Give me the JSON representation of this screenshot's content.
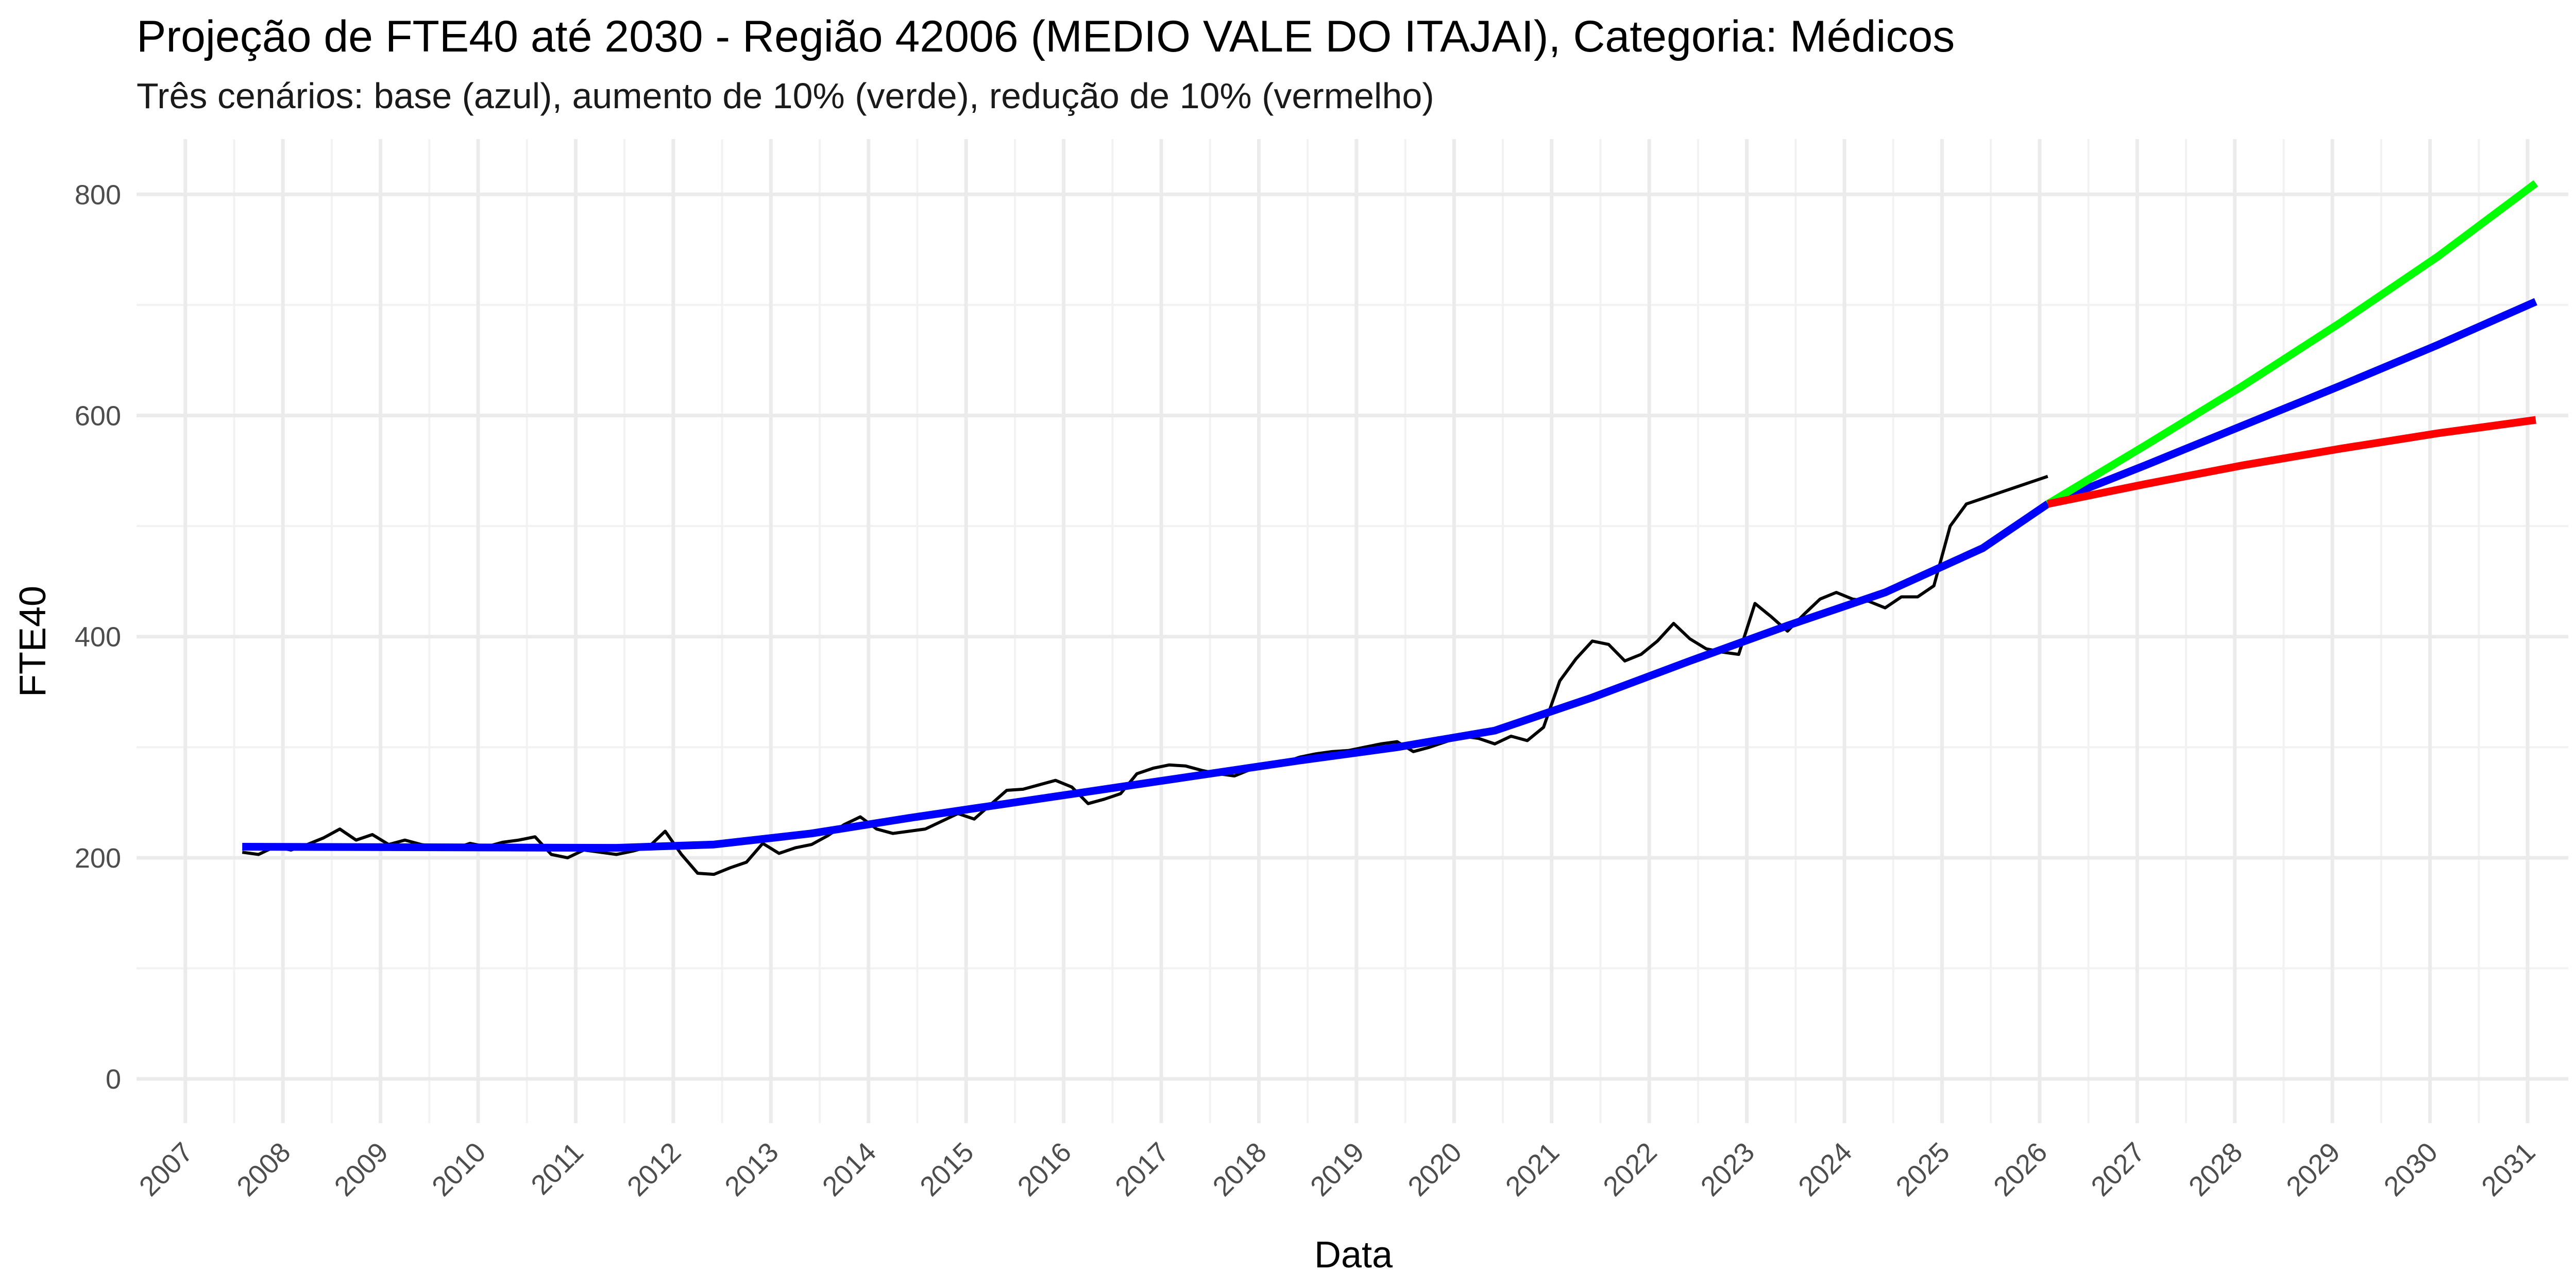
{
  "chart_data": {
    "type": "line",
    "title": "Projeção de FTE40 até 2030 - Região 42006 (MEDIO VALE DO ITAJAI), Categoria: Médicos",
    "subtitle": "Três cenários: base (azul), aumento de 10% (verde), redução de 10% (vermelho)",
    "xlabel": "Data",
    "ylabel": "FTE40",
    "xlim": [
      "2006-07-01",
      "2031-06-01"
    ],
    "ylim": [
      -40,
      850
    ],
    "x_ticks": [
      "2007",
      "2008",
      "2009",
      "2010",
      "2011",
      "2012",
      "2013",
      "2014",
      "2015",
      "2016",
      "2017",
      "2018",
      "2019",
      "2020",
      "2021",
      "2022",
      "2023",
      "2024",
      "2025",
      "2026",
      "2027",
      "2028",
      "2029",
      "2030",
      "2031"
    ],
    "y_ticks": [
      0,
      200,
      400,
      600,
      800
    ],
    "y_tick_labels": [
      "0",
      "200",
      "400",
      "600",
      "800"
    ],
    "grid": true,
    "legend": "none",
    "series": [
      {
        "color": "#000000",
        "points": [
          [
            "2007-08-01",
            205
          ],
          [
            "2007-10-01",
            203
          ],
          [
            "2007-12-01",
            210
          ],
          [
            "2008-02-01",
            207
          ],
          [
            "2008-04-01",
            212
          ],
          [
            "2008-06-01",
            218
          ],
          [
            "2008-08-01",
            226
          ],
          [
            "2008-10-01",
            216
          ],
          [
            "2008-12-01",
            221
          ],
          [
            "2009-02-01",
            212
          ],
          [
            "2009-04-01",
            216
          ],
          [
            "2009-06-01",
            212
          ],
          [
            "2009-08-01",
            210
          ],
          [
            "2009-10-01",
            208
          ],
          [
            "2009-12-01",
            213
          ],
          [
            "2010-02-01",
            210
          ],
          [
            "2010-04-01",
            214
          ],
          [
            "2010-06-01",
            216
          ],
          [
            "2010-08-01",
            219
          ],
          [
            "2010-10-01",
            203
          ],
          [
            "2010-12-01",
            200
          ],
          [
            "2011-02-01",
            207
          ],
          [
            "2011-04-01",
            205
          ],
          [
            "2011-06-01",
            203
          ],
          [
            "2011-08-01",
            206
          ],
          [
            "2011-10-01",
            210
          ],
          [
            "2011-12-01",
            224
          ],
          [
            "2012-02-01",
            203
          ],
          [
            "2012-04-01",
            186
          ],
          [
            "2012-06-01",
            185
          ],
          [
            "2012-08-01",
            191
          ],
          [
            "2012-10-01",
            196
          ],
          [
            "2012-12-01",
            213
          ],
          [
            "2013-02-01",
            204
          ],
          [
            "2013-04-01",
            209
          ],
          [
            "2013-06-01",
            212
          ],
          [
            "2013-08-01",
            220
          ],
          [
            "2013-10-01",
            230
          ],
          [
            "2013-12-01",
            237
          ],
          [
            "2014-02-01",
            226
          ],
          [
            "2014-04-01",
            222
          ],
          [
            "2014-06-01",
            224
          ],
          [
            "2014-08-01",
            226
          ],
          [
            "2014-10-01",
            233
          ],
          [
            "2014-12-01",
            240
          ],
          [
            "2015-02-01",
            235
          ],
          [
            "2015-04-01",
            248
          ],
          [
            "2015-06-01",
            261
          ],
          [
            "2015-08-01",
            262
          ],
          [
            "2015-10-01",
            266
          ],
          [
            "2015-12-01",
            270
          ],
          [
            "2016-02-01",
            264
          ],
          [
            "2016-04-01",
            249
          ],
          [
            "2016-06-01",
            253
          ],
          [
            "2016-08-01",
            258
          ],
          [
            "2016-10-01",
            276
          ],
          [
            "2016-12-01",
            281
          ],
          [
            "2017-02-01",
            284
          ],
          [
            "2017-04-01",
            283
          ],
          [
            "2017-06-01",
            279
          ],
          [
            "2017-08-01",
            276
          ],
          [
            "2017-10-01",
            274
          ],
          [
            "2017-12-01",
            280
          ],
          [
            "2018-02-01",
            282
          ],
          [
            "2018-04-01",
            286
          ],
          [
            "2018-06-01",
            291
          ],
          [
            "2018-08-01",
            294
          ],
          [
            "2018-10-01",
            296
          ],
          [
            "2018-12-01",
            297
          ],
          [
            "2019-02-01",
            300
          ],
          [
            "2019-04-01",
            303
          ],
          [
            "2019-06-01",
            305
          ],
          [
            "2019-08-01",
            296
          ],
          [
            "2019-10-01",
            300
          ],
          [
            "2019-12-01",
            305
          ],
          [
            "2020-02-01",
            310
          ],
          [
            "2020-04-01",
            308
          ],
          [
            "2020-06-01",
            303
          ],
          [
            "2020-08-01",
            310
          ],
          [
            "2020-10-01",
            306
          ],
          [
            "2020-12-01",
            318
          ],
          [
            "2021-02-01",
            360
          ],
          [
            "2021-04-01",
            380
          ],
          [
            "2021-06-01",
            396
          ],
          [
            "2021-08-01",
            393
          ],
          [
            "2021-10-01",
            378
          ],
          [
            "2021-12-01",
            384
          ],
          [
            "2022-02-01",
            396
          ],
          [
            "2022-04-01",
            412
          ],
          [
            "2022-06-01",
            398
          ],
          [
            "2022-08-01",
            389
          ],
          [
            "2022-10-01",
            386
          ],
          [
            "2022-12-01",
            384
          ],
          [
            "2023-02-01",
            430
          ],
          [
            "2023-04-01",
            418
          ],
          [
            "2023-06-01",
            405
          ],
          [
            "2023-08-01",
            420
          ],
          [
            "2023-10-01",
            434
          ],
          [
            "2023-12-01",
            440
          ],
          [
            "2024-02-01",
            434
          ],
          [
            "2024-04-01",
            432
          ],
          [
            "2024-06-01",
            426
          ],
          [
            "2024-08-01",
            436
          ],
          [
            "2024-10-01",
            436
          ],
          [
            "2024-12-01",
            446
          ],
          [
            "2025-02-01",
            500
          ],
          [
            "2025-04-01",
            520
          ],
          [
            "2025-06-01",
            525
          ],
          [
            "2025-08-01",
            530
          ],
          [
            "2025-10-01",
            535
          ],
          [
            "2025-12-01",
            540
          ],
          [
            "2026-02-01",
            545
          ]
        ]
      },
      {
        "color": "#0000ff",
        "points": [
          [
            "2007-08-01",
            210
          ],
          [
            "2011-06-01",
            209
          ],
          [
            "2012-06-01",
            212
          ],
          [
            "2013-06-01",
            222
          ],
          [
            "2014-06-01",
            236
          ],
          [
            "2015-06-01",
            249
          ],
          [
            "2016-06-01",
            262
          ],
          [
            "2017-06-01",
            275
          ],
          [
            "2018-06-01",
            288
          ],
          [
            "2019-06-01",
            300
          ],
          [
            "2020-06-01",
            315
          ],
          [
            "2021-06-01",
            345
          ],
          [
            "2022-06-01",
            378
          ],
          [
            "2023-06-01",
            410
          ],
          [
            "2024-06-01",
            440
          ],
          [
            "2025-06-01",
            480
          ],
          [
            "2026-02-01",
            520
          ],
          [
            "2027-02-01",
            555
          ],
          [
            "2028-02-01",
            591
          ],
          [
            "2029-02-01",
            627
          ],
          [
            "2030-02-01",
            664
          ],
          [
            "2031-02-01",
            703
          ]
        ]
      },
      {
        "color": "#00ff00",
        "points": [
          [
            "2026-02-01",
            520
          ],
          [
            "2027-02-01",
            573
          ],
          [
            "2028-02-01",
            627
          ],
          [
            "2029-02-01",
            684
          ],
          [
            "2030-02-01",
            744
          ],
          [
            "2031-02-01",
            810
          ]
        ]
      },
      {
        "color": "#ff0000",
        "points": [
          [
            "2026-02-01",
            520
          ],
          [
            "2027-02-01",
            538
          ],
          [
            "2028-02-01",
            555
          ],
          [
            "2029-02-01",
            570
          ],
          [
            "2030-02-01",
            584
          ],
          [
            "2031-02-01",
            596
          ]
        ]
      }
    ]
  }
}
